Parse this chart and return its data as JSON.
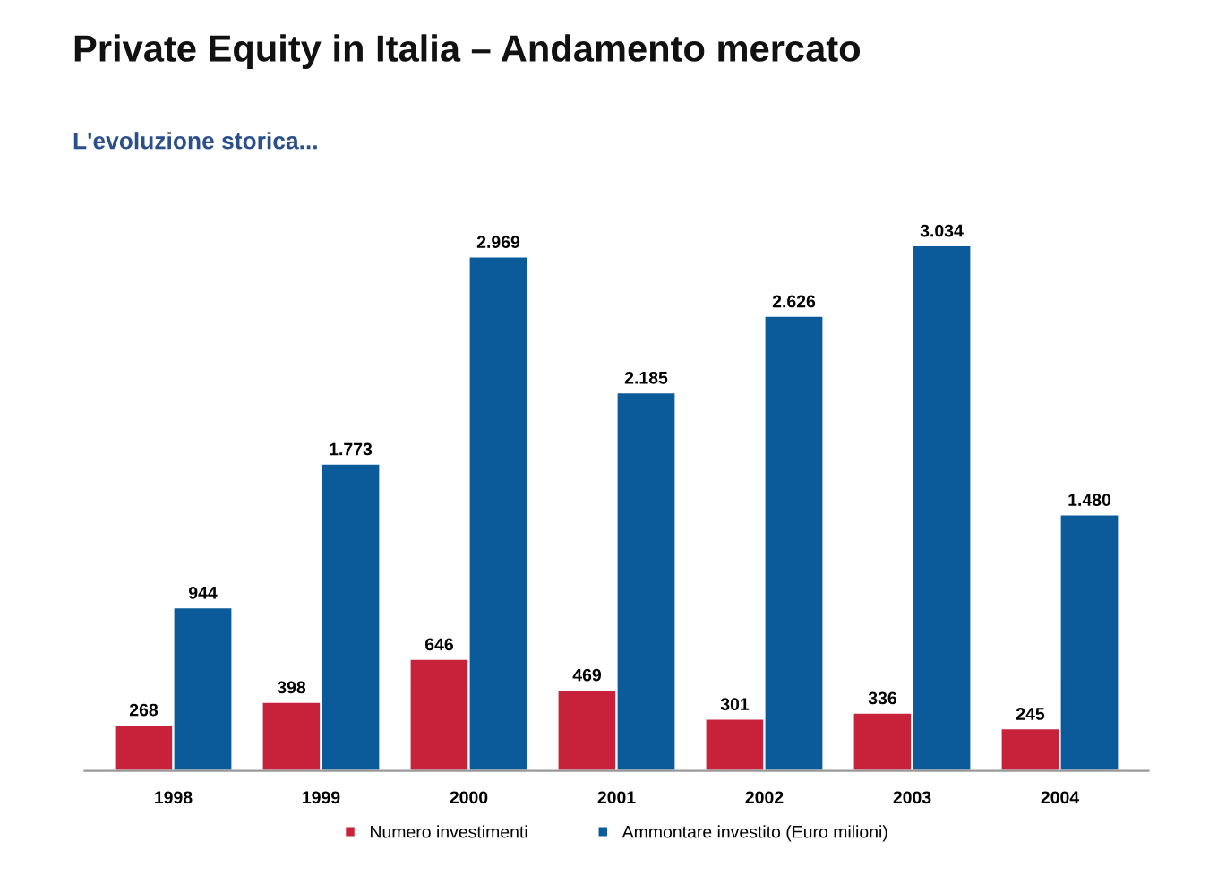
{
  "chart_data": {
    "type": "bar",
    "title": "Private Equity in Italia – Andamento mercato",
    "subtitle": "L'evoluzione storica...",
    "categories": [
      "1998",
      "1999",
      "2000",
      "2001",
      "2002",
      "2003",
      "2004"
    ],
    "series": [
      {
        "name": "Numero investimenti",
        "color": "#c8213a",
        "values": [
          268,
          398,
          646,
          469,
          301,
          336,
          245
        ],
        "value_labels": [
          "268",
          "398",
          "646",
          "469",
          "301",
          "336",
          "245"
        ]
      },
      {
        "name": "Ammontare investito (Euro milioni)",
        "color": "#0b5a9a",
        "values": [
          944,
          1773,
          2969,
          2185,
          2626,
          3034,
          1480
        ],
        "value_labels": [
          "944",
          "1.773",
          "2.969",
          "2.185",
          "2.626",
          "3.034",
          "1.480"
        ]
      }
    ],
    "tick_labels": "x",
    "legend": "bottom",
    "grid": false
  }
}
